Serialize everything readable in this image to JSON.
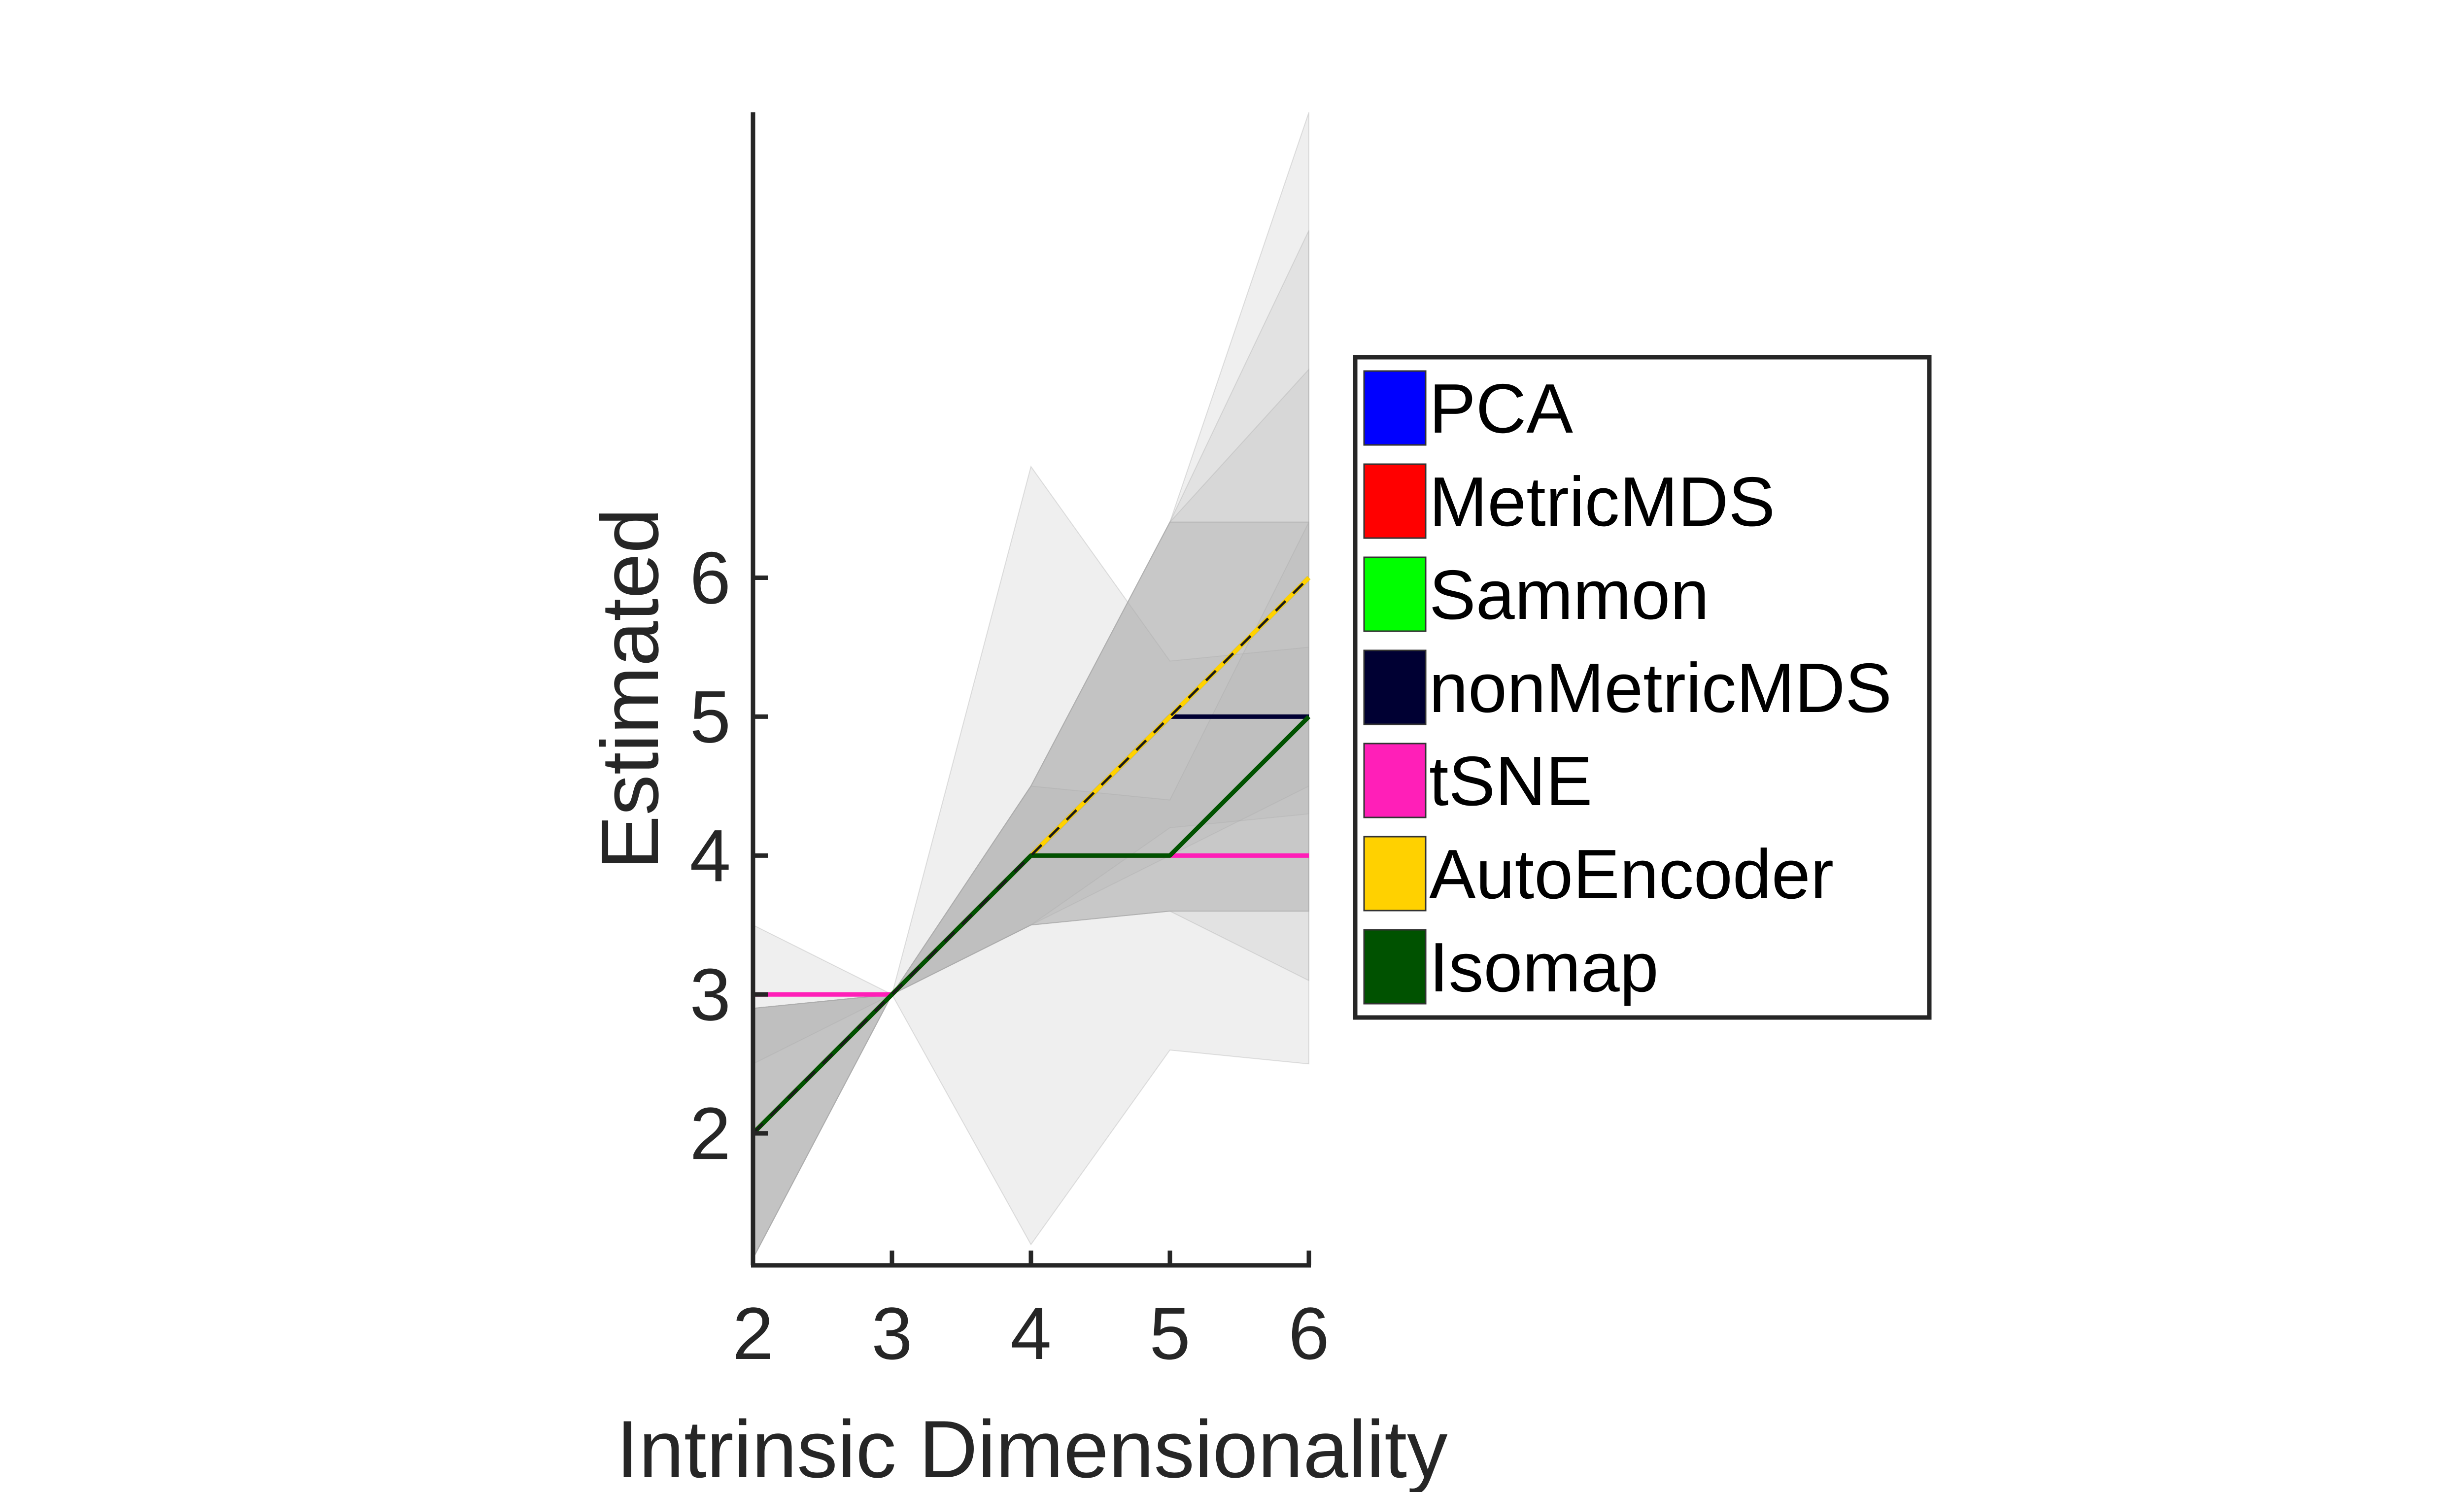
{
  "chart_data": {
    "type": "line",
    "title": "",
    "xlabel": "Intrinsic Dimensionality",
    "ylabel": "Estimated",
    "x": [
      2,
      3,
      4,
      5,
      6
    ],
    "xlim": [
      2,
      6
    ],
    "ylim": [
      1.05,
      9.35
    ],
    "xticks": [
      "2",
      "3",
      "4",
      "5",
      "6"
    ],
    "yticks": [
      "2",
      "3",
      "4",
      "5",
      "6"
    ],
    "grid": false,
    "legend_position": "right",
    "series": [
      {
        "name": "PCA",
        "color": "#0000FF",
        "values": [
          2,
          3,
          4,
          5,
          6
        ],
        "band_lower": [
          1.1,
          3.0,
          3.5,
          4.2,
          4.3
        ],
        "band_upper": [
          2.9,
          3.0,
          4.5,
          6.4,
          8.5
        ]
      },
      {
        "name": "MetricMDS",
        "color": "#FF0000",
        "values": [
          2,
          3,
          4,
          5,
          6
        ],
        "band_lower": [
          1.1,
          3.0,
          3.5,
          4.0,
          4.5
        ],
        "band_upper": [
          2.9,
          3.0,
          4.5,
          6.4,
          7.5
        ]
      },
      {
        "name": "Sammon",
        "color": "#00FF00",
        "values": [
          2,
          3,
          4,
          5,
          6
        ],
        "band_lower": [
          1.1,
          3.0,
          3.5,
          3.6,
          3.6
        ],
        "band_upper": [
          2.9,
          3.0,
          4.5,
          6.4,
          6.4
        ]
      },
      {
        "name": "nonMetricMDS",
        "color": "#000033",
        "values": [
          2,
          3,
          4,
          5,
          5
        ],
        "band_lower": [
          1.1,
          3.0,
          3.5,
          3.6,
          3.1
        ],
        "band_upper": [
          2.9,
          3.0,
          4.5,
          6.4,
          6.4
        ]
      },
      {
        "name": "tSNE",
        "color": "#FF1FB8",
        "values": [
          3,
          3,
          4,
          4,
          4
        ],
        "band_lower": [
          2.5,
          3.0,
          1.2,
          2.6,
          2.5
        ],
        "band_upper": [
          3.5,
          3.0,
          6.8,
          5.4,
          5.5
        ]
      },
      {
        "name": "AutoEncoder",
        "color": "#FFD100",
        "values": [
          2,
          3,
          4,
          5,
          6
        ],
        "band_lower": [
          1.1,
          3.0,
          3.5,
          3.6,
          3.6
        ],
        "band_upper": [
          2.9,
          3.0,
          4.5,
          6.4,
          9.35
        ]
      },
      {
        "name": "Isomap",
        "color": "#005200",
        "values": [
          2,
          3,
          4,
          4,
          5
        ],
        "band_lower": [
          1.1,
          3.0,
          3.5,
          3.6,
          3.6
        ],
        "band_upper": [
          2.9,
          3.0,
          4.5,
          4.4,
          6.4
        ]
      }
    ]
  }
}
